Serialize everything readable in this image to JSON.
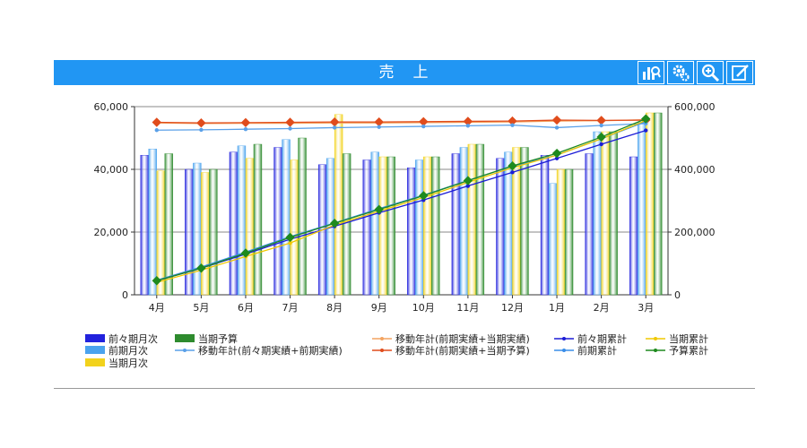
{
  "header": {
    "title": "売　上",
    "tools": [
      {
        "name": "chart-type-icon",
        "label": "chart"
      },
      {
        "name": "settings-icon",
        "label": "settings"
      },
      {
        "name": "zoom-icon",
        "label": "zoom"
      },
      {
        "name": "edit-icon",
        "label": "edit"
      }
    ]
  },
  "colors": {
    "header": "#2196f3",
    "prev2_monthly": "#2222dd",
    "prev_monthly": "#4aa3ee",
    "cur_monthly": "#f2d21c",
    "budget": "#2e8b2e",
    "moving_prev": "#5aa0e8",
    "moving_cur_actual": "#f4a460",
    "moving_cur_budget": "#e04c1c",
    "prev2_cum": "#1b1bd6",
    "prev_cum": "#3a8de8",
    "cur_cum": "#f0c800",
    "budget_cum": "#1e8a1e"
  },
  "chart_data": {
    "type": "bar",
    "categories": [
      "4月",
      "5月",
      "6月",
      "7月",
      "8月",
      "9月",
      "10月",
      "11月",
      "12月",
      "1月",
      "2月",
      "3月"
    ],
    "ylim": [
      0,
      60000
    ],
    "y2lim": [
      0,
      600000
    ],
    "yticks": [
      "0",
      "20,000",
      "40,000",
      "60,000"
    ],
    "y2ticks": [
      "0",
      "200,000",
      "400,000",
      "600,000"
    ],
    "bar_series": [
      {
        "name": "前々期月次",
        "values": [
          44500,
          40000,
          45500,
          47000,
          41500,
          43000,
          40500,
          45000,
          43500,
          44500,
          45000,
          44000
        ]
      },
      {
        "name": "前期月次",
        "values": [
          46500,
          42000,
          47500,
          49500,
          43500,
          45500,
          43000,
          47000,
          45500,
          35500,
          52000,
          55000
        ]
      },
      {
        "name": "当期月次",
        "values": [
          39500,
          39000,
          43500,
          43000,
          57500,
          44000,
          44000,
          48000,
          47000,
          40000,
          52000,
          58000
        ]
      },
      {
        "name": "当期予算",
        "values": [
          45000,
          40000,
          48000,
          50000,
          45000,
          44000,
          44000,
          48000,
          47000,
          40000,
          52000,
          58000
        ]
      }
    ],
    "line_series": [
      {
        "name": "移動年計(前期実績+当期実績)",
        "axis": "left",
        "values": [
          54800,
          54600,
          54700,
          54700,
          54800,
          54800,
          54900,
          55000,
          55100,
          55400,
          55500,
          55800
        ]
      },
      {
        "name": "移動年計(前期実績+当期予算)",
        "axis": "left",
        "values": [
          55000,
          54800,
          54900,
          55000,
          55100,
          55100,
          55200,
          55300,
          55400,
          55700,
          55600,
          55700
        ]
      },
      {
        "name": "移動年計(前々期実績+前期実績)",
        "axis": "left",
        "values": [
          52500,
          52600,
          52800,
          53000,
          53300,
          53500,
          53700,
          53900,
          54100,
          53300,
          54000,
          54600
        ]
      },
      {
        "name": "前々期累計",
        "axis": "right",
        "values": [
          44500,
          84500,
          130000,
          177000,
          218500,
          261500,
          302000,
          347000,
          390500,
          435000,
          480000,
          524000
        ]
      },
      {
        "name": "前期累計",
        "axis": "right",
        "values": [
          46500,
          88500,
          136000,
          185500,
          229000,
          274500,
          317500,
          364500,
          410000,
          445500,
          497500,
          552500
        ]
      },
      {
        "name": "当期累計",
        "axis": "right",
        "values": [
          39500,
          78500,
          122000,
          165000,
          222500,
          266500,
          310500,
          358500,
          405500,
          445500,
          497500,
          555500
        ]
      },
      {
        "name": "予算累計",
        "axis": "right",
        "values": [
          45000,
          85000,
          133000,
          183000,
          228000,
          272000,
          316000,
          364000,
          411000,
          451000,
          503000,
          561000
        ]
      }
    ],
    "legend": [
      [
        "前々期月次",
        "前期月次",
        "当期月次"
      ],
      [
        "当期予算"
      ],
      [
        "移動年計(前々期実績+前期実績)"
      ],
      [
        "移動年計(前期実績+当期実績)",
        "移動年計(前期実績+当期予算)"
      ],
      [
        "前々期累計",
        "前期累計"
      ],
      [
        "当期累計",
        "予算累計"
      ]
    ]
  }
}
